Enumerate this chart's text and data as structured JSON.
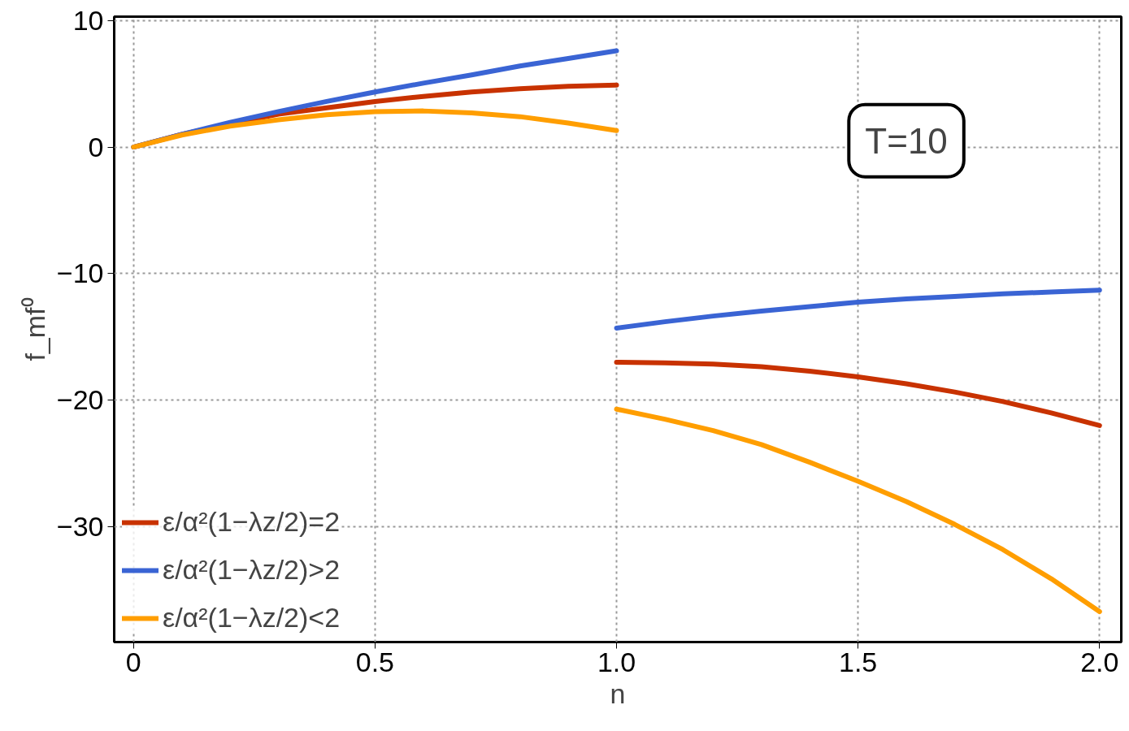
{
  "chart_data": {
    "type": "line",
    "xlabel": "n",
    "ylabel": "f_mf⁰",
    "x": [
      0,
      0.1,
      0.2,
      0.3,
      0.4,
      0.5,
      0.6,
      0.7,
      0.8,
      0.9,
      1.0,
      1.0,
      1.1,
      1.2,
      1.3,
      1.4,
      1.5,
      1.6,
      1.7,
      1.8,
      1.9,
      2.0
    ],
    "series": [
      {
        "name": "ε/α²(1−λz/2)=2",
        "color": "#c83200",
        "values": [
          0,
          1.0,
          1.85,
          2.6,
          3.1,
          3.6,
          4.0,
          4.35,
          4.6,
          4.8,
          4.9,
          -17.0,
          -17.05,
          -17.15,
          -17.35,
          -17.7,
          -18.15,
          -18.7,
          -19.35,
          -20.1,
          -21.0,
          -22.0
        ]
      },
      {
        "name": "ε/α²(1−λz/2)>2",
        "color": "#3a64d4",
        "values": [
          0,
          1.0,
          1.95,
          2.8,
          3.6,
          4.35,
          5.05,
          5.7,
          6.4,
          7.0,
          7.6,
          -14.3,
          -13.8,
          -13.35,
          -12.95,
          -12.6,
          -12.25,
          -12.0,
          -11.8,
          -11.6,
          -11.45,
          -11.3
        ]
      },
      {
        "name": "ε/α²(1−λz/2)<2",
        "color": "#ff9e00",
        "values": [
          0,
          0.95,
          1.65,
          2.15,
          2.55,
          2.8,
          2.85,
          2.7,
          2.4,
          1.9,
          1.3,
          -20.7,
          -21.5,
          -22.4,
          -23.5,
          -24.9,
          -26.4,
          -28.0,
          -29.8,
          -31.8,
          -34.1,
          -36.7
        ]
      }
    ],
    "xlim": [
      -0.04,
      2.045
    ],
    "ylim": [
      -39.1,
      10.3
    ],
    "xticks": [
      0,
      0.5,
      {
        "value": 1,
        "label": "1.0"
      },
      1.5,
      {
        "value": 2,
        "label": "2.0"
      }
    ],
    "yticks": [
      {
        "value": -30,
        "label": "−30"
      },
      {
        "value": -20,
        "label": "−20"
      },
      {
        "value": -10,
        "label": "−10"
      },
      0,
      10
    ],
    "grid": true,
    "legend": "bottom left",
    "line_style": "solid",
    "marker": "none",
    "annotations": [
      "T=10"
    ]
  }
}
